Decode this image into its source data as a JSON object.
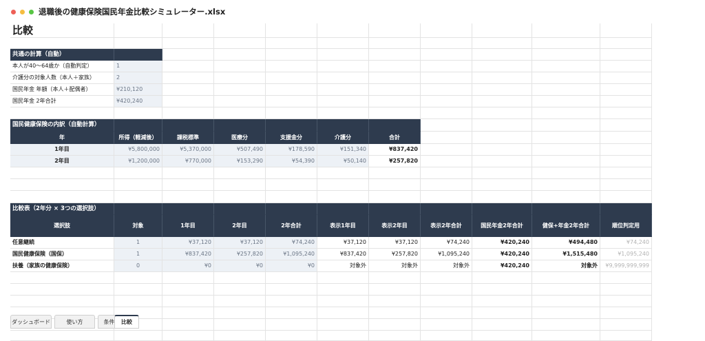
{
  "window": {
    "title": "退職後の健康保険国民年金比較シミュレーター.xlsx"
  },
  "sheet": {
    "title": "比較"
  },
  "common": {
    "header": "共通の計算（自動）",
    "rows": [
      {
        "label": "本人が40〜64歳か（自動判定）",
        "value": "1"
      },
      {
        "label": "介護分の対象人数（本人＋家族）",
        "value": "2"
      },
      {
        "label": "国民年金 年額（本人＋配偶者）",
        "value": "¥210,120"
      },
      {
        "label": "国民年金 2年合計",
        "value": "¥420,240"
      }
    ]
  },
  "nhi": {
    "header": "国民健康保険の内訳（自動計算）",
    "columns": [
      "年",
      "所得（軽減後）",
      "課税標準",
      "医療分",
      "支援金分",
      "介護分",
      "合計"
    ],
    "rows": [
      [
        "1年目",
        "¥5,800,000",
        "¥5,370,000",
        "¥507,490",
        "¥178,590",
        "¥151,340",
        "¥837,420"
      ],
      [
        "2年目",
        "¥1,200,000",
        "¥770,000",
        "¥153,290",
        "¥54,390",
        "¥50,140",
        "¥257,820"
      ]
    ]
  },
  "comparison": {
    "header": "比較表（2年分 × 3つの選択肢）",
    "columns": [
      "選択肢",
      "対象",
      "1年目",
      "2年目",
      "2年合計",
      "表示1年目",
      "表示2年目",
      "表示2年合計",
      "国民年金2年合計",
      "健保+年金2年合計",
      "順位判定用"
    ],
    "rows": [
      [
        "任意継続",
        "1",
        "¥37,120",
        "¥37,120",
        "¥74,240",
        "¥37,120",
        "¥37,120",
        "¥74,240",
        "¥420,240",
        "¥494,480",
        "¥74,240"
      ],
      [
        "国民健康保険（国保）",
        "1",
        "¥837,420",
        "¥257,820",
        "¥1,095,240",
        "¥837,420",
        "¥257,820",
        "¥1,095,240",
        "¥420,240",
        "¥1,515,480",
        "¥1,095,240"
      ],
      [
        "扶養（家族の健康保険）",
        "0",
        "¥0",
        "¥0",
        "¥0",
        "対象外",
        "対象外",
        "対象外",
        "¥420,240",
        "対象外",
        "¥9,999,999,999"
      ]
    ]
  },
  "tabs": [
    {
      "label": "ダッシュボード",
      "active": false
    },
    {
      "label": "使い方",
      "active": false
    },
    {
      "label": "条件",
      "active": false
    },
    {
      "label": "比較",
      "active": true
    }
  ],
  "colors": {
    "header_bg": "#2e3b4e",
    "input_bg": "#edf1f6",
    "gridline": "#e3e3e3"
  }
}
